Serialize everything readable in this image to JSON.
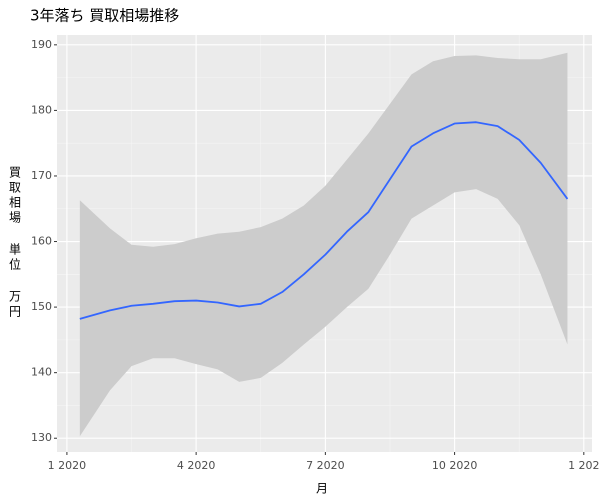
{
  "chart_data": {
    "type": "line",
    "title": "3年落ち 買取相場推移",
    "xlabel": "月",
    "ylabel": "買取相場 単位 万円",
    "x": [
      0.3,
      1,
      1.5,
      2,
      2.5,
      3,
      3.5,
      4,
      4.5,
      5,
      5.5,
      6,
      6.5,
      7,
      7.5,
      8,
      8.5,
      9,
      9.5,
      10,
      10.5,
      11,
      11.62
    ],
    "series": [
      {
        "color": "#3366FF",
        "values": [
          148.2,
          149.5,
          150.2,
          150.5,
          150.9,
          151,
          150.7,
          150.1,
          150.5,
          152.3,
          155,
          158,
          161.5,
          164.5,
          169.5,
          174.5,
          176.5,
          178,
          178.2,
          177.6,
          175.5,
          172,
          166.5
        ],
        "upper": [
          166.3,
          162,
          159.5,
          159.2,
          159.6,
          160.5,
          161.2,
          161.5,
          162.2,
          163.5,
          165.5,
          168.5,
          172.5,
          176.5,
          181,
          185.5,
          187.5,
          188.3,
          188.4,
          188,
          187.8,
          187.8,
          188.8
        ],
        "lower": [
          130.3,
          137.3,
          141,
          142.2,
          142.2,
          141.3,
          140.5,
          138.6,
          139.2,
          141.5,
          144.3,
          147,
          150,
          152.8,
          158,
          163.5,
          165.5,
          167.5,
          168,
          166.5,
          162.5,
          155,
          144.3
        ],
        "band_color": "#CCCCCC"
      }
    ],
    "xlim": [
      -0.23,
      12.19
    ],
    "xticks": [
      {
        "value": 0,
        "label": "1 2020"
      },
      {
        "value": 3,
        "label": "4 2020"
      },
      {
        "value": 6,
        "label": "7 2020"
      },
      {
        "value": 9,
        "label": "10 2020"
      },
      {
        "value": 12,
        "label": "1 202"
      }
    ],
    "ylim": [
      127.9,
      191.5
    ],
    "yticks": [
      130,
      140,
      150,
      160,
      170,
      180,
      190
    ],
    "grid": true
  }
}
